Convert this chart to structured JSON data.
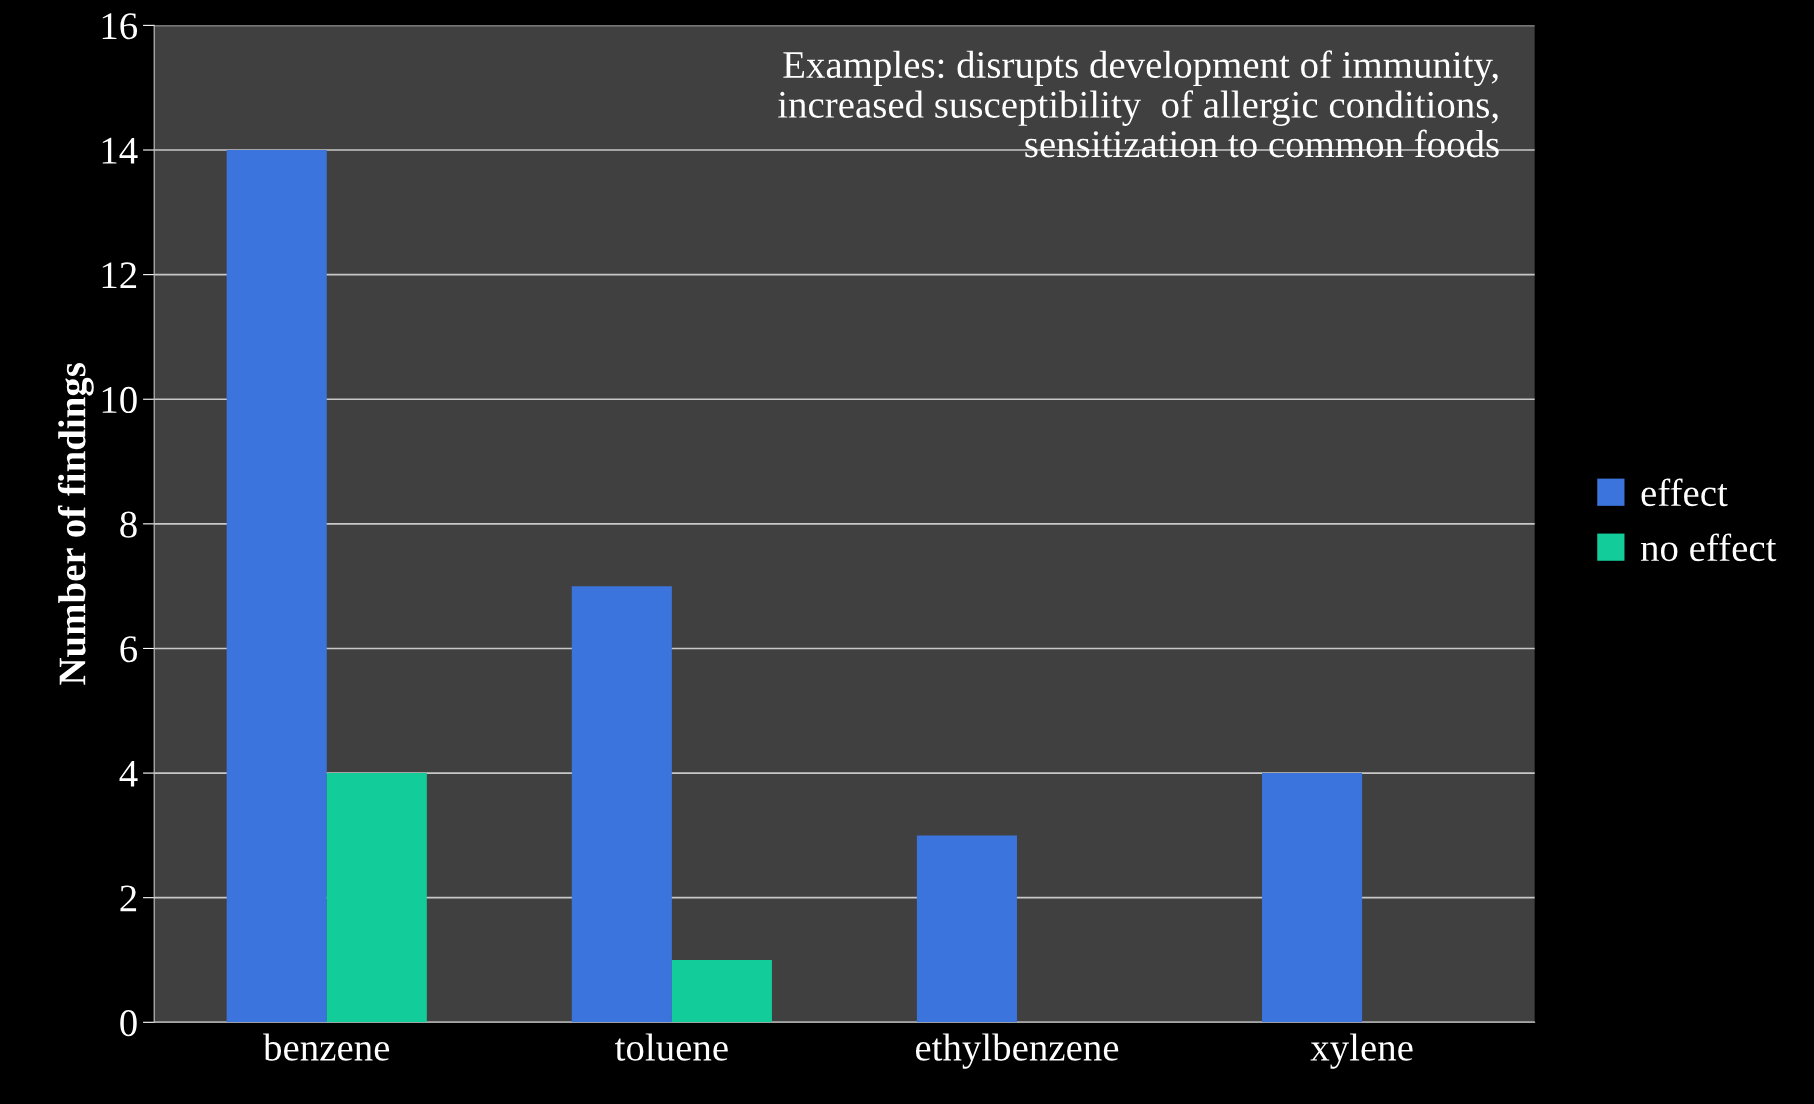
{
  "chart_data": {
    "type": "bar",
    "ylabel": "Number of findings",
    "categories": [
      "benzene",
      "toluene",
      "ethylbenzene",
      "xylene"
    ],
    "series": [
      {
        "name": "effect",
        "color": "#3b74dc",
        "values": [
          14,
          7,
          3,
          4
        ]
      },
      {
        "name": "no effect",
        "color": "#12cc99",
        "values": [
          4,
          1,
          0,
          0
        ]
      }
    ],
    "ylim": [
      0,
      16
    ],
    "yticks": [
      0,
      2,
      4,
      6,
      8,
      10,
      12,
      14,
      16
    ],
    "grid": "y",
    "legend": "right",
    "annotations": [
      "Examples: disrupts development of immunity,\nincreased susceptibility  of allergic conditions,\nsensitization to common foods"
    ]
  }
}
